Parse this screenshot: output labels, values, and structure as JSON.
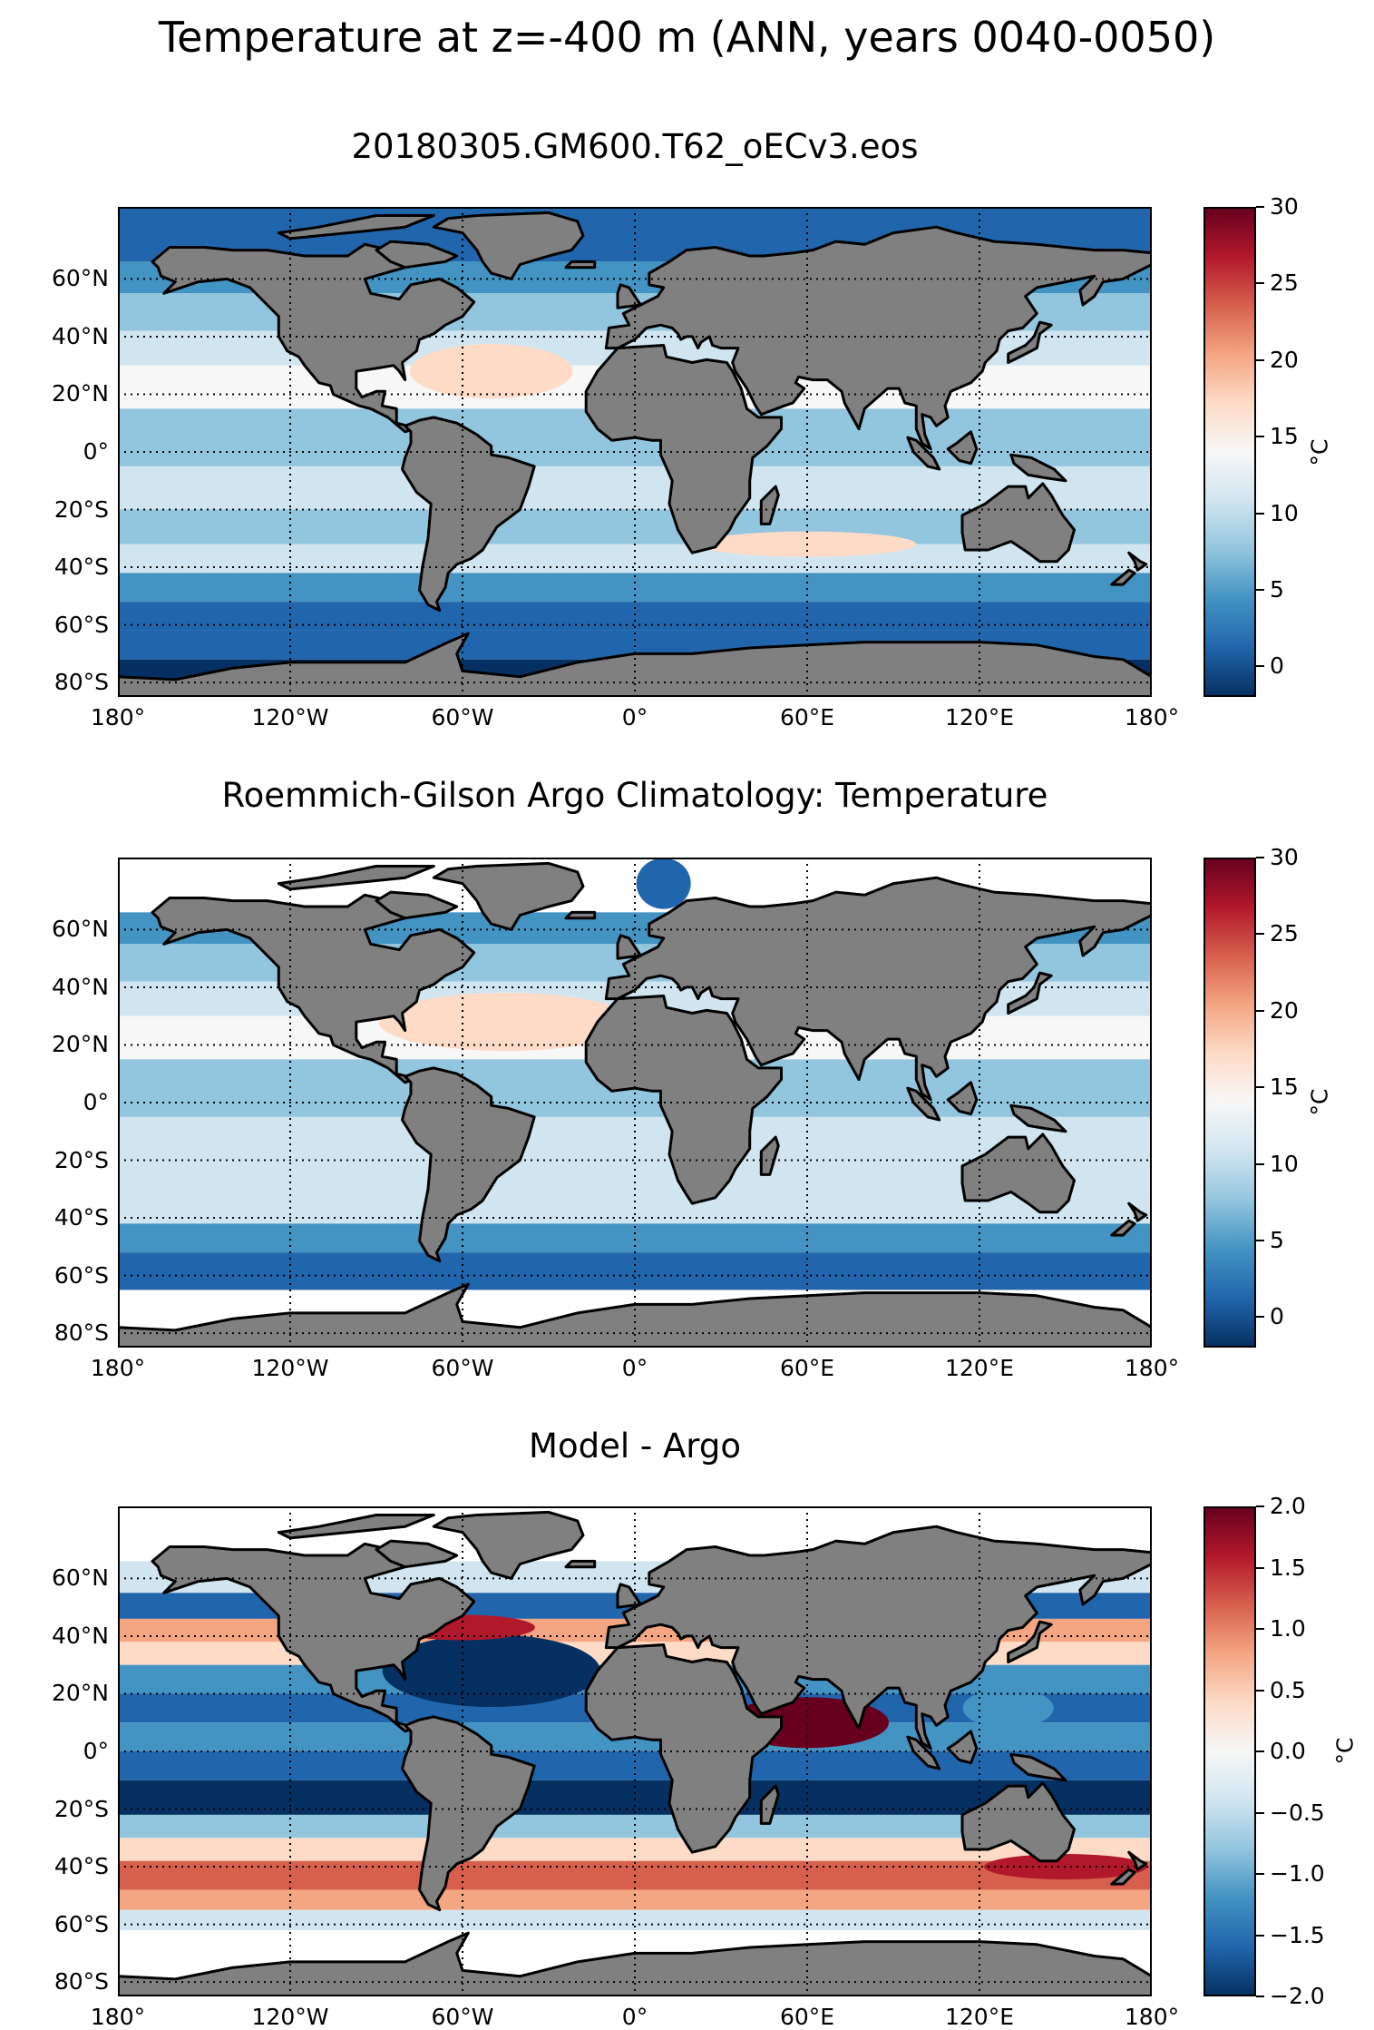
{
  "figure": {
    "title": "Temperature at z=-400 m (ANN, years 0040-0050)"
  },
  "panels": [
    {
      "title": "20180305.GM600.T62_oECv3.eos",
      "colorbar": {
        "ticks": [
          "30",
          "25",
          "20",
          "15",
          "10",
          "5",
          "0"
        ],
        "values": [
          30,
          25,
          20,
          15,
          10,
          5,
          0
        ],
        "vmin": -2,
        "vmax": 30,
        "label": "°C"
      }
    },
    {
      "title": "Roemmich-Gilson Argo Climatology: Temperature",
      "colorbar": {
        "ticks": [
          "30",
          "25",
          "20",
          "15",
          "10",
          "5",
          "0"
        ],
        "values": [
          30,
          25,
          20,
          15,
          10,
          5,
          0
        ],
        "vmin": -2,
        "vmax": 30,
        "label": "°C"
      }
    },
    {
      "title": "Model - Argo",
      "colorbar": {
        "ticks": [
          "2.0",
          "1.5",
          "1.0",
          "0.5",
          "0.0",
          "−0.5",
          "−1.0",
          "−1.5",
          "−2.0"
        ],
        "values": [
          2,
          1.5,
          1,
          0.5,
          0,
          -0.5,
          -1,
          -1.5,
          -2
        ],
        "vmin": -2,
        "vmax": 2,
        "label": "°C"
      }
    }
  ],
  "axes": {
    "lat_ticks": [
      "60°N",
      "40°N",
      "20°N",
      "0°",
      "20°S",
      "40°S",
      "60°S",
      "80°S"
    ],
    "lat_values": [
      60,
      40,
      20,
      0,
      -20,
      -40,
      -60,
      -80
    ],
    "lon_ticks": [
      "180°",
      "120°W",
      "60°W",
      "0°",
      "60°E",
      "120°E",
      "180°"
    ],
    "lon_values": [
      -180,
      -120,
      -60,
      0,
      60,
      120,
      180
    ],
    "lat_range": [
      -85,
      85
    ],
    "lon_range": [
      -180,
      180
    ],
    "gridlines": true
  },
  "colors": {
    "land": "#808080",
    "coast": "#000000",
    "cmap": [
      "#053061",
      "#2166ac",
      "#4393c3",
      "#92c5de",
      "#d1e5f0",
      "#f7f7f7",
      "#fddbc7",
      "#f4a582",
      "#d6604d",
      "#b2182b",
      "#67001f"
    ]
  },
  "chart_data": {
    "type": "heatmap",
    "panels": [
      {
        "name": "model",
        "field": "temperature at -400 m",
        "unit": "°C",
        "vmin": -2,
        "vmax": 30
      },
      {
        "name": "argo",
        "field": "temperature at -400 m",
        "unit": "°C",
        "vmin": -2,
        "vmax": 30
      },
      {
        "name": "bias",
        "field": "model minus argo",
        "unit": "°C",
        "vmin": -2,
        "vmax": 2
      }
    ]
  }
}
